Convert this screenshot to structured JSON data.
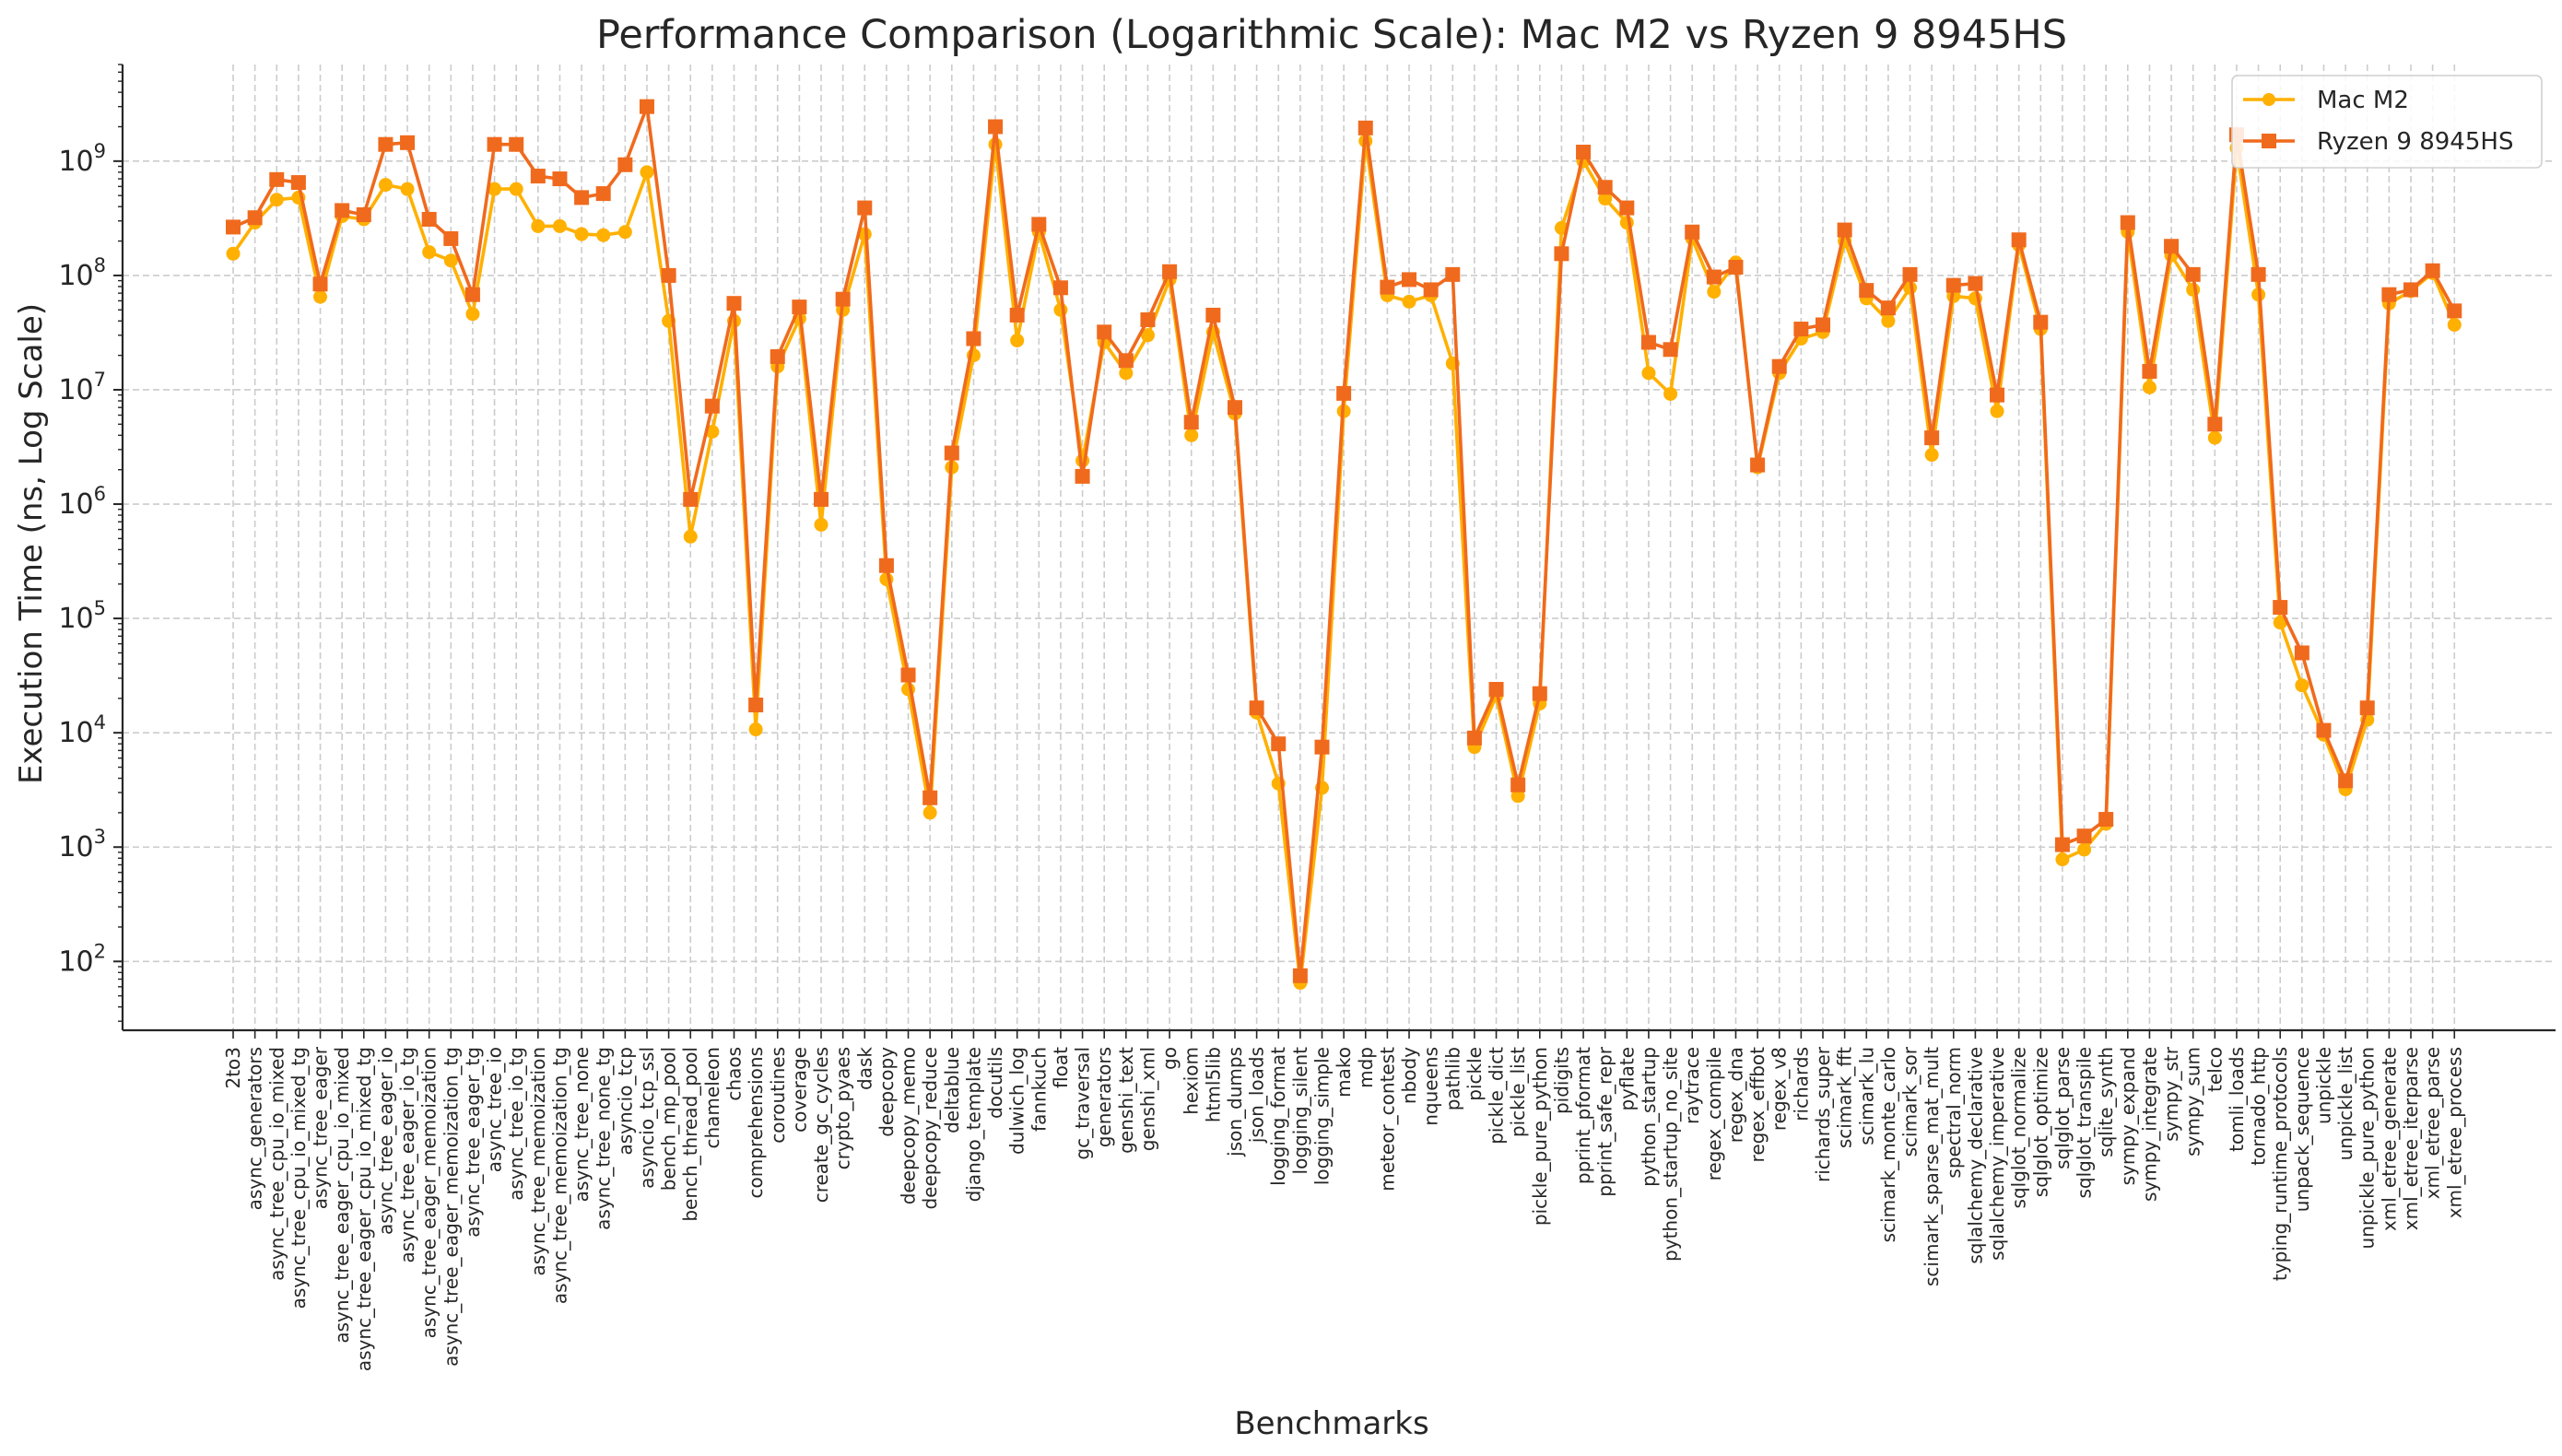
{
  "chart_data": {
    "type": "line",
    "title": "Performance Comparison (Logarithmic Scale): Mac M2 vs Ryzen 9 8945HS",
    "xlabel": "Benchmarks",
    "ylabel": "Execution Time (ns, Log Scale)",
    "y_scale": "log",
    "ylim": [
      25,
      7000000000
    ],
    "grid": true,
    "legend_position": "top-right",
    "ytick_labels": [
      {
        "base": "10",
        "exp": "2",
        "value": 100
      },
      {
        "base": "10",
        "exp": "3",
        "value": 1000
      },
      {
        "base": "10",
        "exp": "4",
        "value": 10000
      },
      {
        "base": "10",
        "exp": "5",
        "value": 100000
      },
      {
        "base": "10",
        "exp": "6",
        "value": 1000000
      },
      {
        "base": "10",
        "exp": "7",
        "value": 10000000
      },
      {
        "base": "10",
        "exp": "8",
        "value": 100000000
      },
      {
        "base": "10",
        "exp": "9",
        "value": 1000000000
      }
    ],
    "categories": [
      "2to3",
      "async_generators",
      "async_tree_cpu_io_mixed",
      "async_tree_cpu_io_mixed_tg",
      "async_tree_eager",
      "async_tree_eager_cpu_io_mixed",
      "async_tree_eager_cpu_io_mixed_tg",
      "async_tree_eager_io",
      "async_tree_eager_io_tg",
      "async_tree_eager_memoization",
      "async_tree_eager_memoization_tg",
      "async_tree_eager_tg",
      "async_tree_io",
      "async_tree_io_tg",
      "async_tree_memoization",
      "async_tree_memoization_tg",
      "async_tree_none",
      "async_tree_none_tg",
      "asyncio_tcp",
      "asyncio_tcp_ssl",
      "bench_mp_pool",
      "bench_thread_pool",
      "chameleon",
      "chaos",
      "comprehensions",
      "coroutines",
      "coverage",
      "create_gc_cycles",
      "crypto_pyaes",
      "dask",
      "deepcopy",
      "deepcopy_memo",
      "deepcopy_reduce",
      "deltablue",
      "django_template",
      "docutils",
      "dulwich_log",
      "fannkuch",
      "float",
      "gc_traversal",
      "generators",
      "genshi_text",
      "genshi_xml",
      "go",
      "hexiom",
      "html5lib",
      "json_dumps",
      "json_loads",
      "logging_format",
      "logging_silent",
      "logging_simple",
      "mako",
      "mdp",
      "meteor_contest",
      "nbody",
      "nqueens",
      "pathlib",
      "pickle",
      "pickle_dict",
      "pickle_list",
      "pickle_pure_python",
      "pidigits",
      "pprint_pformat",
      "pprint_safe_repr",
      "pyflate",
      "python_startup",
      "python_startup_no_site",
      "raytrace",
      "regex_compile",
      "regex_dna",
      "regex_effbot",
      "regex_v8",
      "richards",
      "richards_super",
      "scimark_fft",
      "scimark_lu",
      "scimark_monte_carlo",
      "scimark_sor",
      "scimark_sparse_mat_mult",
      "spectral_norm",
      "sqlalchemy_declarative",
      "sqlalchemy_imperative",
      "sqlglot_normalize",
      "sqlglot_optimize",
      "sqlglot_parse",
      "sqlglot_transpile",
      "sqlite_synth",
      "sympy_expand",
      "sympy_integrate",
      "sympy_str",
      "sympy_sum",
      "telco",
      "tomli_loads",
      "tornado_http",
      "typing_runtime_protocols",
      "unpack_sequence",
      "unpickle",
      "unpickle_list",
      "unpickle_pure_python",
      "xml_etree_generate",
      "xml_etree_iterparse",
      "xml_etree_parse",
      "xml_etree_process"
    ],
    "series": [
      {
        "name": "Mac M2",
        "color": "#FFB000",
        "marker": "circle",
        "values": [
          155000000,
          290000000,
          460000000,
          480000000,
          65000000,
          330000000,
          310000000,
          620000000,
          570000000,
          160000000,
          135000000,
          46000000,
          570000000,
          570000000,
          270000000,
          270000000,
          230000000,
          225000000,
          240000000,
          800000000,
          40000000,
          520000,
          4300000,
          40000000,
          10700,
          16000000,
          42000000,
          660000,
          50000000,
          230000000,
          220000,
          24000,
          2000,
          2100000,
          20000000,
          1400000000,
          27000000,
          240000000,
          50000000,
          2400000,
          26000000,
          14000000,
          30000000,
          92000000,
          4000000,
          32000000,
          6200000,
          15000,
          3600,
          65,
          3300,
          6500000,
          1500000000,
          67000000,
          59000000,
          67000000,
          17000000,
          7500,
          21000,
          2800,
          18000,
          260000000,
          1000000000,
          470000000,
          290000000,
          14000000,
          9200000,
          210000000,
          72000000,
          130000000,
          2100000,
          14000000,
          28000000,
          32000000,
          200000000,
          63000000,
          40000000,
          78000000,
          2700000,
          66000000,
          63000000,
          6500000,
          185000000,
          34000000,
          780,
          950,
          1600,
          240000000,
          10500000,
          150000000,
          75000000,
          3800000,
          1300000000,
          68000000,
          92000,
          26000,
          9600,
          3200,
          13000,
          57000000,
          73000000,
          105000000,
          37000000
        ]
      },
      {
        "name": "Ryzen 9 8945HS",
        "color": "#F06A1D",
        "marker": "square",
        "values": [
          265000000,
          320000000,
          690000000,
          650000000,
          84000000,
          370000000,
          340000000,
          1400000000,
          1450000000,
          310000000,
          210000000,
          68000000,
          1400000000,
          1400000000,
          740000000,
          700000000,
          480000000,
          520000000,
          930000000,
          3000000000,
          100000000,
          1100000,
          7200000,
          57000000,
          17500,
          19500000,
          53000000,
          1100000,
          62000000,
          390000000,
          290000,
          32000,
          2700,
          2800000,
          28000000,
          2000000000,
          45000000,
          280000000,
          78000000,
          1750000,
          32000000,
          18000000,
          41000000,
          108000000,
          5200000,
          45000000,
          7000000,
          16500,
          8000,
          75,
          7500,
          9300000,
          1950000000,
          79000000,
          92000000,
          75000000,
          102000000,
          9000,
          24000,
          3500,
          22000,
          155000000,
          1200000000,
          590000000,
          390000000,
          26000000,
          22500000,
          240000000,
          97000000,
          118000000,
          2200000,
          16000000,
          34000000,
          37000000,
          250000000,
          74000000,
          52000000,
          102000000,
          3800000,
          82000000,
          85000000,
          9000000,
          205000000,
          39000000,
          1050,
          1250,
          1750,
          290000000,
          14500000,
          180000000,
          102000000,
          5000000,
          1700000000,
          102000000,
          125000,
          50000,
          10500,
          3800,
          16500,
          68000000,
          75000000,
          110000000,
          49000000
        ]
      }
    ]
  }
}
